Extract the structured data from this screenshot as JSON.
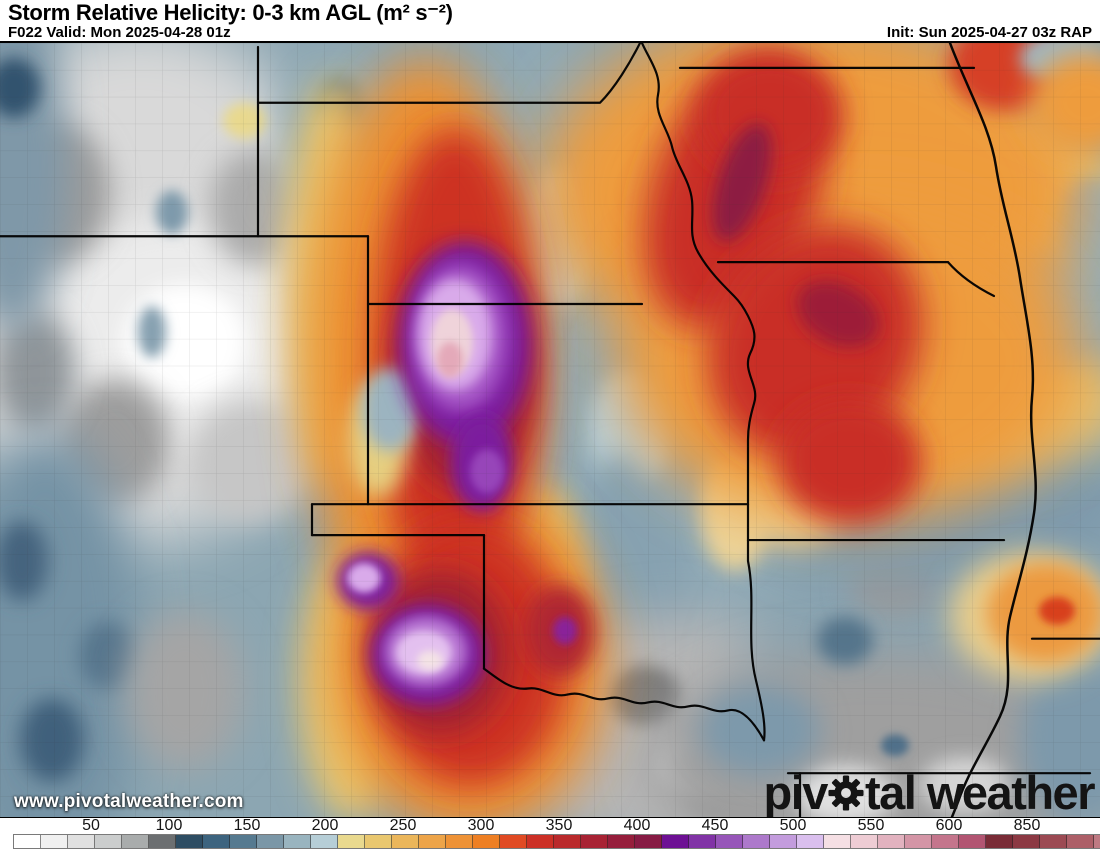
{
  "header": {
    "title": "Storm Relative Helicity: 0-3 km AGL (m² s⁻²)",
    "forecast_label": "F022 Valid: Mon 2025-04-28 01z",
    "init_label": "Init: Sun 2025-04-27 03z RAP"
  },
  "map": {
    "watermark": "www.pivotalweather.com",
    "logo": {
      "prefix": "piv",
      "suffix": "tal weather"
    }
  },
  "chart_data": {
    "type": "heatmap",
    "title": "Storm Relative Helicity: 0-3 km AGL (m² s⁻²)",
    "units": "m² s⁻²",
    "model": "RAP",
    "forecast_hour": "F022",
    "valid_time": "Mon 2025-04-28 01z",
    "init_time": "Sun 2025-04-27 03z",
    "legend_position": "bottom",
    "colorbar": {
      "tick_labels": [
        "50",
        "100",
        "150",
        "200",
        "250",
        "300",
        "350",
        "400",
        "450",
        "500",
        "550",
        "600",
        "850"
      ],
      "cell_colors": [
        "#ffffff",
        "#f0f0f0",
        "#e0e0e0",
        "#cbcdcd",
        "#a9acac",
        "#6c6f71",
        "#2e4d63",
        "#3d647f",
        "#567a90",
        "#7b97a7",
        "#99b4bf",
        "#b6ced7",
        "#e9d98e",
        "#e9c76f",
        "#ebb65a",
        "#eda449",
        "#ee9236",
        "#ee7f23",
        "#e04a23",
        "#cc3026",
        "#ba2a2c",
        "#a82334",
        "#961e3c",
        "#871b44",
        "#6d1094",
        "#8133a6",
        "#9756b9",
        "#ad79cb",
        "#c39cdd",
        "#dabfee",
        "#f5dfe4",
        "#eeccd4",
        "#e2b2bf",
        "#d495a6",
        "#c4758c",
        "#b25572",
        "#7a2c37",
        "#8c3943",
        "#9c4a53",
        "#ad5f68",
        "#bf7a83"
      ]
    }
  }
}
